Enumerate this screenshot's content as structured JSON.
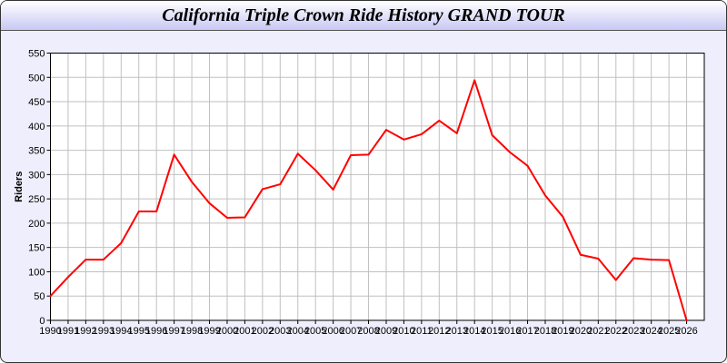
{
  "chart_data": {
    "type": "line",
    "title": "California Triple Crown Ride History GRAND TOUR",
    "xlabel": "",
    "ylabel": "Riders",
    "x": [
      1990,
      1991,
      1992,
      1993,
      1994,
      1995,
      1996,
      1997,
      1998,
      1999,
      2000,
      2001,
      2002,
      2003,
      2004,
      2005,
      2006,
      2007,
      2008,
      2009,
      2010,
      2011,
      2012,
      2013,
      2014,
      2015,
      2016,
      2017,
      2018,
      2019,
      2020,
      2021,
      2022,
      2023,
      2024,
      2025,
      2026
    ],
    "series": [
      {
        "values": [
          50,
          89,
          125,
          125,
          159,
          224,
          224,
          341,
          285,
          241,
          211,
          212,
          270,
          280,
          343,
          309,
          269,
          340,
          341,
          392,
          372,
          383,
          411,
          385,
          494,
          381,
          346,
          318,
          257,
          213,
          135,
          127,
          83,
          128,
          125,
          124,
          0
        ],
        "color": "#ff0000"
      }
    ],
    "ylim": [
      0,
      550
    ],
    "yticks": [
      0,
      50,
      100,
      150,
      200,
      250,
      300,
      350,
      400,
      450,
      500,
      550
    ],
    "xlim": [
      1990,
      2027
    ],
    "grid": true,
    "legend": "none"
  },
  "colors": {
    "background": "#eeeefc",
    "grid": "#c0c0c0",
    "line": "#ff0000"
  }
}
